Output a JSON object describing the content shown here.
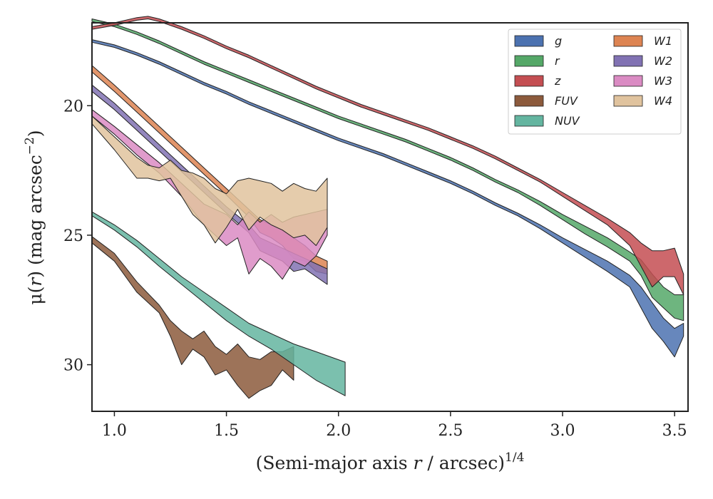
{
  "chart_data": {
    "type": "area",
    "xlabel_parts": [
      "(Semi-major axis ",
      "r",
      " / arcsec)",
      "1/4"
    ],
    "ylabel_parts": [
      "μ(",
      "r",
      ") (mag arcsec",
      "−2",
      ")"
    ],
    "xlim": [
      0.9,
      3.56
    ],
    "ylim": [
      31.8,
      16.8
    ],
    "y_inverted": true,
    "x_ticks": [
      "1.0",
      "1.5",
      "2.0",
      "2.5",
      "3.0",
      "3.5"
    ],
    "y_ticks": [
      "20",
      "25",
      "30"
    ],
    "grid": false,
    "legend_position": "top-right",
    "series": [
      {
        "name": "g",
        "color": "#4c72b0",
        "x": [
          0.9,
          1.0,
          1.1,
          1.2,
          1.3,
          1.4,
          1.5,
          1.6,
          1.7,
          1.8,
          1.9,
          2.0,
          2.1,
          2.2,
          2.3,
          2.4,
          2.5,
          2.6,
          2.7,
          2.8,
          2.9,
          3.0,
          3.1,
          3.2,
          3.3,
          3.35,
          3.4,
          3.45,
          3.5,
          3.54
        ],
        "low": [
          17.45,
          17.65,
          17.95,
          18.3,
          18.7,
          19.1,
          19.45,
          19.85,
          20.2,
          20.55,
          20.9,
          21.25,
          21.55,
          21.85,
          22.2,
          22.55,
          22.9,
          23.3,
          23.75,
          24.15,
          24.6,
          25.1,
          25.55,
          26.0,
          26.55,
          27.0,
          27.6,
          28.2,
          28.6,
          28.4
        ],
        "high": [
          17.55,
          17.75,
          18.05,
          18.4,
          18.8,
          19.2,
          19.55,
          19.95,
          20.3,
          20.65,
          21.0,
          21.35,
          21.65,
          21.95,
          22.3,
          22.65,
          23.0,
          23.4,
          23.85,
          24.25,
          24.75,
          25.3,
          25.85,
          26.4,
          27.0,
          27.8,
          28.6,
          29.1,
          29.7,
          28.9
        ]
      },
      {
        "name": "r",
        "color": "#55a868",
        "x": [
          0.9,
          1.0,
          1.1,
          1.2,
          1.3,
          1.4,
          1.5,
          1.6,
          1.7,
          1.8,
          1.9,
          2.0,
          2.1,
          2.2,
          2.3,
          2.4,
          2.5,
          2.6,
          2.7,
          2.8,
          2.9,
          3.0,
          3.1,
          3.2,
          3.3,
          3.35,
          3.4,
          3.45,
          3.5,
          3.54
        ],
        "low": [
          16.65,
          16.85,
          17.15,
          17.5,
          17.9,
          18.3,
          18.65,
          19.0,
          19.35,
          19.7,
          20.05,
          20.4,
          20.7,
          21.0,
          21.3,
          21.65,
          22.0,
          22.4,
          22.85,
          23.25,
          23.7,
          24.2,
          24.65,
          25.1,
          25.65,
          25.95,
          26.5,
          27.0,
          27.3,
          27.3
        ],
        "high": [
          16.75,
          16.95,
          17.25,
          17.6,
          18.0,
          18.4,
          18.75,
          19.1,
          19.45,
          19.8,
          20.15,
          20.5,
          20.8,
          21.1,
          21.4,
          21.75,
          22.1,
          22.5,
          22.95,
          23.35,
          23.85,
          24.4,
          24.95,
          25.45,
          26.0,
          26.55,
          27.4,
          27.8,
          28.2,
          28.3
        ]
      },
      {
        "name": "z",
        "color": "#c44e52",
        "x": [
          0.9,
          1.0,
          1.1,
          1.15,
          1.2,
          1.3,
          1.4,
          1.5,
          1.6,
          1.7,
          1.8,
          1.9,
          2.0,
          2.1,
          2.2,
          2.3,
          2.4,
          2.5,
          2.6,
          2.7,
          2.8,
          2.9,
          3.0,
          3.1,
          3.2,
          3.3,
          3.35,
          3.4,
          3.45,
          3.5,
          3.54
        ],
        "low": [
          16.95,
          16.8,
          16.6,
          16.55,
          16.65,
          16.95,
          17.3,
          17.7,
          18.05,
          18.45,
          18.85,
          19.25,
          19.6,
          19.95,
          20.25,
          20.55,
          20.85,
          21.2,
          21.55,
          21.95,
          22.4,
          22.85,
          23.35,
          23.85,
          24.35,
          24.9,
          25.3,
          25.6,
          25.6,
          25.5,
          26.5
        ],
        "high": [
          17.05,
          16.9,
          16.7,
          16.65,
          16.75,
          17.05,
          17.4,
          17.8,
          18.15,
          18.55,
          18.95,
          19.35,
          19.7,
          20.05,
          20.35,
          20.65,
          20.95,
          21.3,
          21.65,
          22.05,
          22.5,
          22.95,
          23.5,
          24.05,
          24.6,
          25.4,
          26.2,
          27.0,
          26.6,
          26.6,
          27.3
        ]
      },
      {
        "name": "FUV",
        "color": "#8c5a3c",
        "x": [
          0.9,
          1.0,
          1.1,
          1.2,
          1.25,
          1.3,
          1.35,
          1.4,
          1.45,
          1.5,
          1.55,
          1.6,
          1.65,
          1.7,
          1.75,
          1.8
        ],
        "low": [
          25.05,
          25.7,
          26.8,
          27.7,
          28.3,
          28.7,
          29.0,
          28.7,
          29.3,
          29.6,
          29.2,
          29.7,
          29.8,
          29.5,
          29.5,
          29.3
        ],
        "high": [
          25.3,
          26.0,
          27.2,
          28.0,
          28.9,
          30.0,
          29.4,
          29.7,
          30.4,
          30.2,
          30.8,
          31.3,
          31.0,
          30.8,
          30.2,
          30.6
        ]
      },
      {
        "name": "NUV",
        "color": "#64b5a0",
        "x": [
          0.9,
          1.0,
          1.1,
          1.2,
          1.3,
          1.4,
          1.5,
          1.6,
          1.7,
          1.8,
          1.9,
          2.03
        ],
        "low": [
          24.1,
          24.6,
          25.2,
          25.9,
          26.6,
          27.2,
          27.8,
          28.4,
          28.8,
          29.2,
          29.5,
          29.9
        ],
        "high": [
          24.25,
          24.8,
          25.45,
          26.2,
          26.9,
          27.6,
          28.3,
          28.9,
          29.4,
          30.0,
          30.6,
          31.2
        ]
      },
      {
        "name": "W1",
        "color": "#dd8452",
        "x": [
          0.9,
          1.0,
          1.1,
          1.2,
          1.3,
          1.4,
          1.5,
          1.6,
          1.65,
          1.7,
          1.75,
          1.8,
          1.85,
          1.9,
          1.95
        ],
        "low": [
          18.45,
          19.2,
          20.0,
          20.8,
          21.6,
          22.4,
          23.2,
          24.0,
          24.4,
          24.6,
          24.8,
          25.1,
          25.4,
          25.8,
          26.0
        ],
        "high": [
          18.7,
          19.45,
          20.25,
          21.05,
          21.85,
          22.65,
          23.45,
          24.3,
          24.9,
          25.1,
          25.4,
          25.9,
          26.0,
          26.4,
          26.5
        ]
      },
      {
        "name": "W2",
        "color": "#8172b3",
        "x": [
          0.9,
          1.0,
          1.1,
          1.2,
          1.3,
          1.4,
          1.5,
          1.6,
          1.65,
          1.7,
          1.75,
          1.8,
          1.85,
          1.9,
          1.95
        ],
        "low": [
          19.2,
          19.9,
          20.7,
          21.5,
          22.3,
          23.1,
          23.9,
          24.6,
          25.1,
          25.3,
          25.5,
          25.7,
          25.9,
          26.1,
          26.3
        ],
        "high": [
          19.45,
          20.15,
          20.95,
          21.75,
          22.55,
          23.35,
          24.15,
          24.9,
          25.6,
          25.8,
          26.0,
          26.4,
          26.3,
          26.6,
          26.9
        ]
      },
      {
        "name": "W3",
        "color": "#da8bc3",
        "x": [
          0.9,
          1.0,
          1.1,
          1.2,
          1.3,
          1.4,
          1.5,
          1.55,
          1.6,
          1.65,
          1.7,
          1.75,
          1.8,
          1.85,
          1.9,
          1.95
        ],
        "low": [
          20.15,
          20.8,
          21.5,
          22.2,
          23.0,
          23.8,
          24.2,
          24.6,
          24.1,
          24.5,
          24.2,
          24.5,
          24.3,
          24.2,
          24.1,
          24.0
        ],
        "high": [
          20.4,
          21.1,
          21.9,
          22.6,
          23.5,
          24.6,
          25.4,
          25.1,
          26.5,
          25.9,
          26.2,
          26.7,
          26.0,
          26.2,
          25.8,
          25.0
        ]
      },
      {
        "name": "W4",
        "color": "#e0c39e",
        "x": [
          0.9,
          1.0,
          1.1,
          1.15,
          1.2,
          1.25,
          1.3,
          1.35,
          1.4,
          1.45,
          1.5,
          1.55,
          1.6,
          1.65,
          1.7,
          1.75,
          1.8,
          1.85,
          1.9,
          1.95
        ],
        "low": [
          20.4,
          21.2,
          22.0,
          22.3,
          22.4,
          22.1,
          22.5,
          22.6,
          22.8,
          23.2,
          23.4,
          22.9,
          22.8,
          22.9,
          23.0,
          23.3,
          23.0,
          23.2,
          23.3,
          22.8
        ],
        "high": [
          20.7,
          21.7,
          22.8,
          22.8,
          22.9,
          22.8,
          23.5,
          24.2,
          24.6,
          25.3,
          24.7,
          24.0,
          24.8,
          24.3,
          24.6,
          24.8,
          25.1,
          25.0,
          25.4,
          24.7
        ]
      }
    ]
  }
}
